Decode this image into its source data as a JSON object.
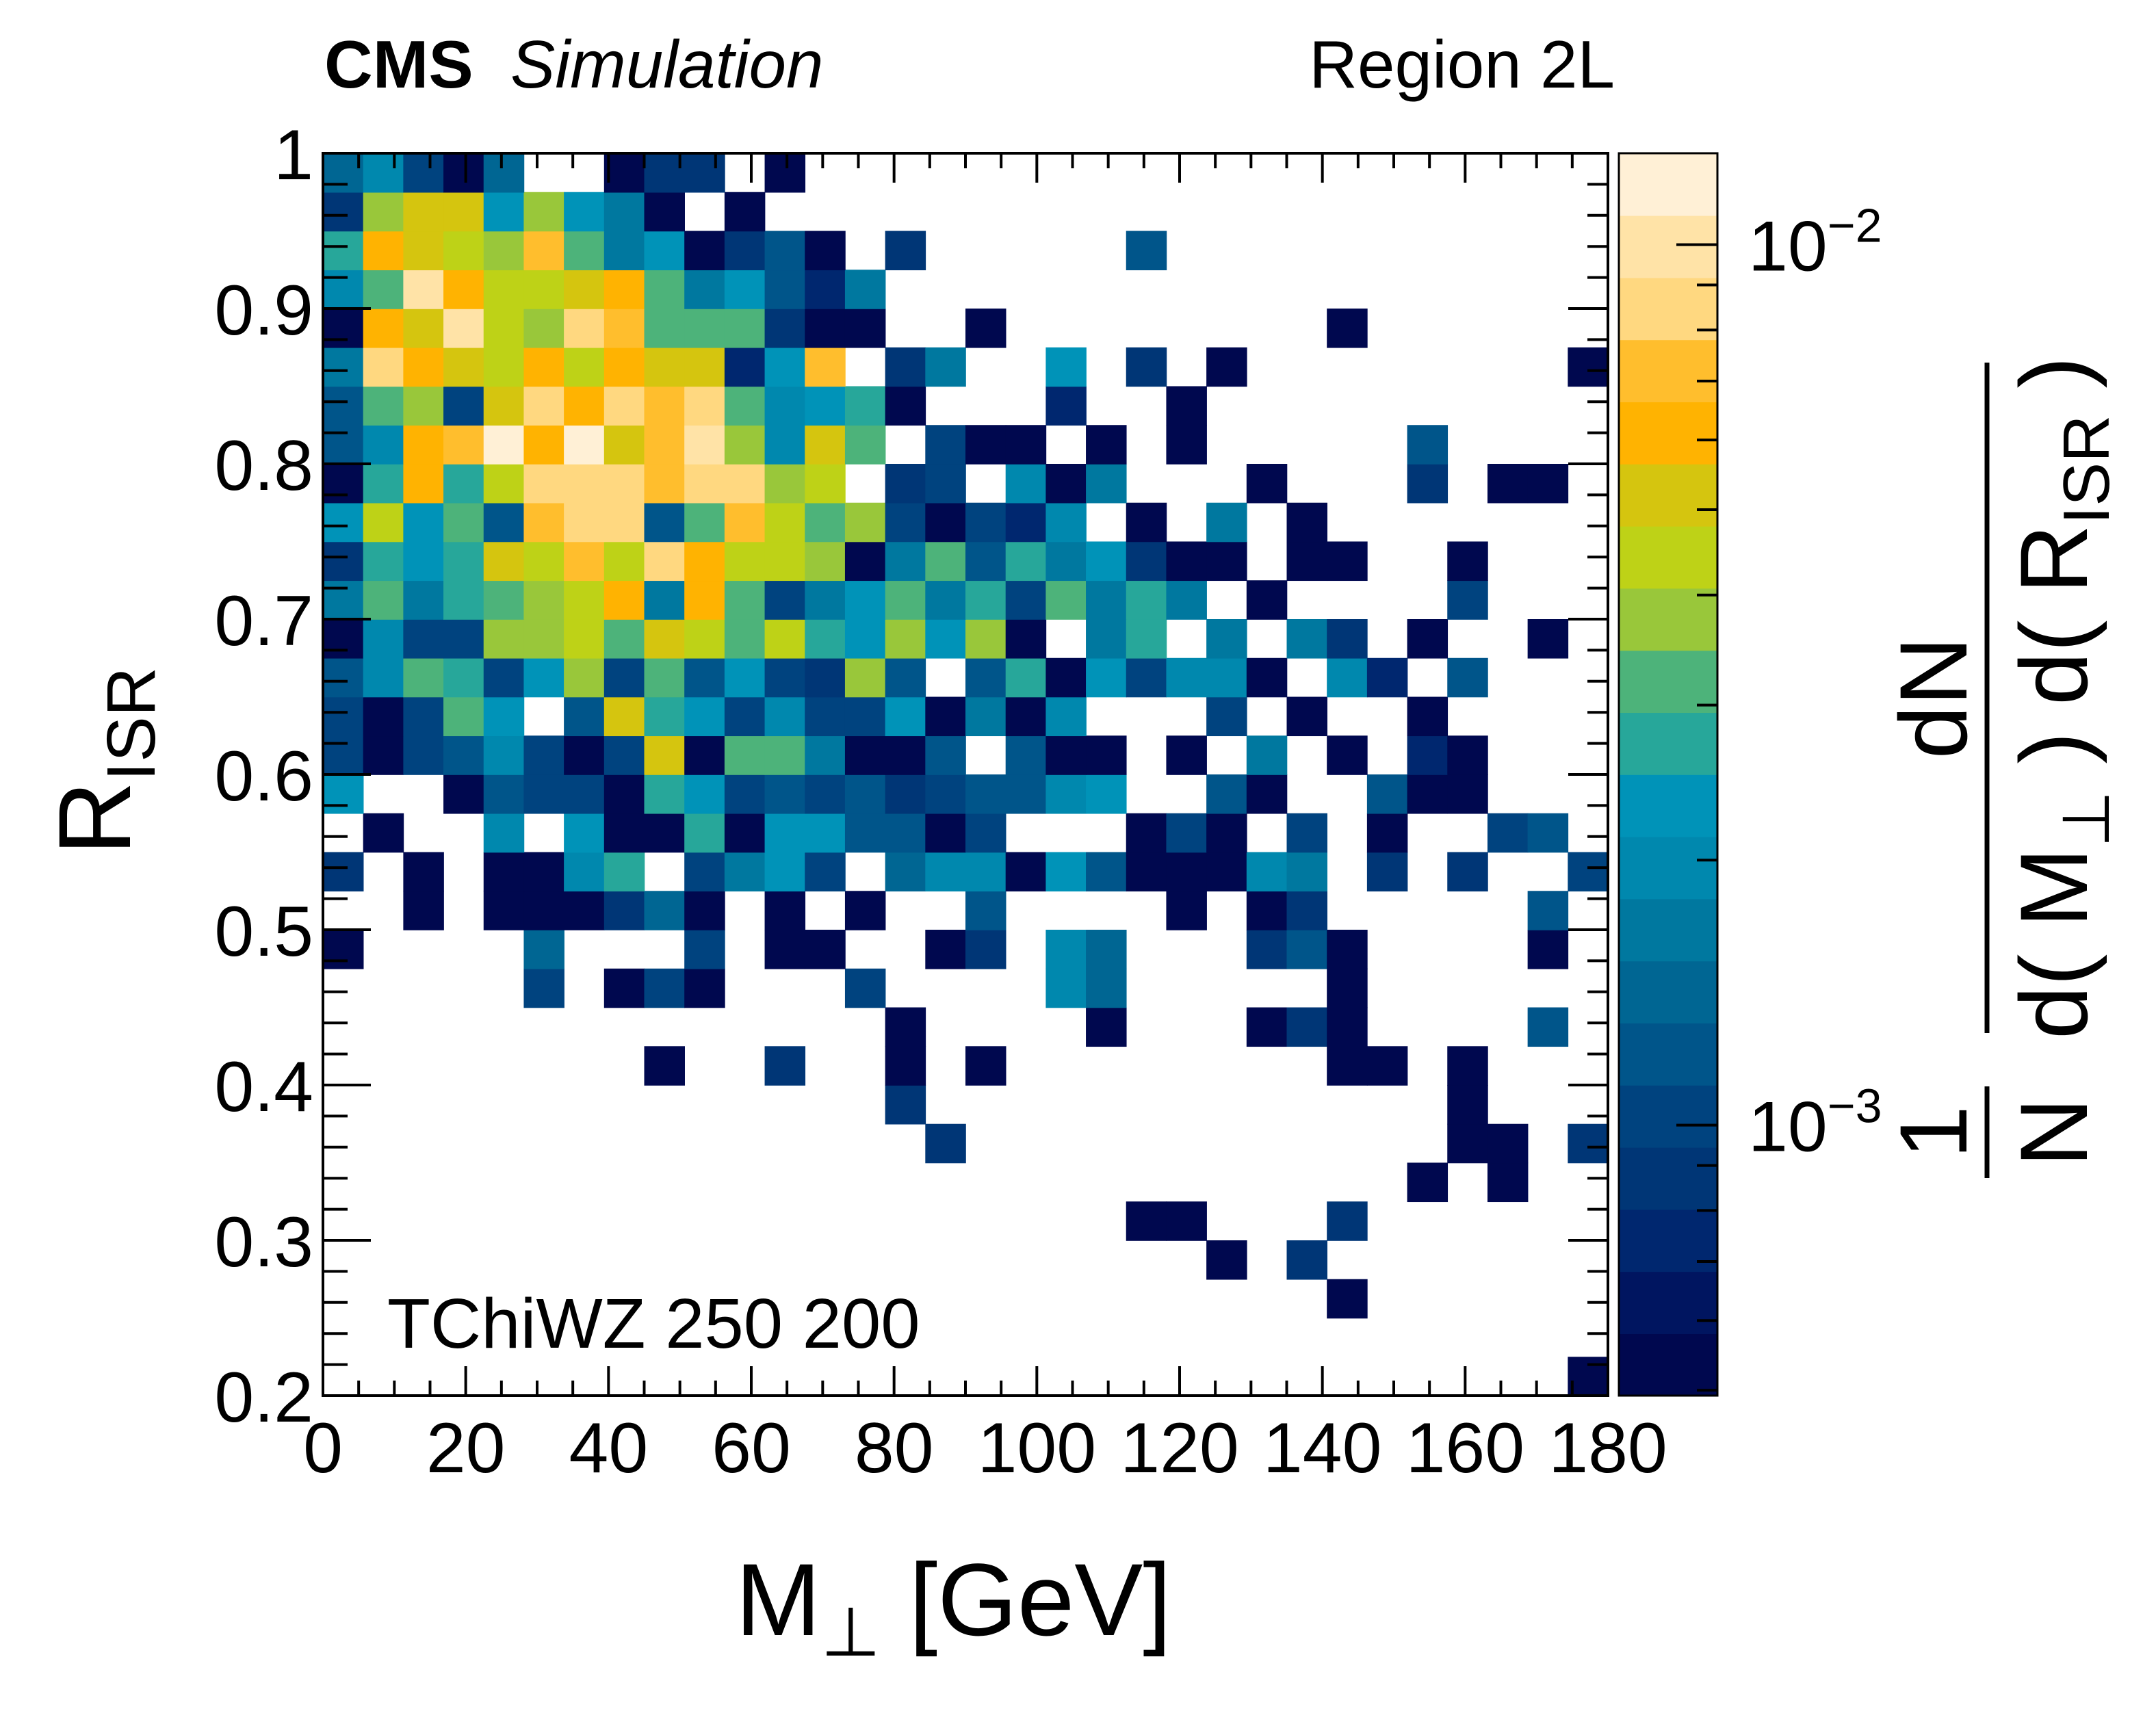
{
  "header": {
    "experiment": "CMS",
    "status": "Simulation",
    "region": "Region 2L"
  },
  "annotation": "TChiWZ 250 200",
  "chart_data": {
    "type": "heatmap",
    "xlabel": {
      "main": "M",
      "sub": "⊥",
      "unit": " [GeV]"
    },
    "ylabel": {
      "main": "R",
      "sub": "ISR"
    },
    "zlabel": {
      "one": "1",
      "N": "N",
      "numerator": "dN",
      "denominator_parts": [
        "d( M",
        "⊥",
        " ) d( R",
        "ISR",
        " )"
      ]
    },
    "x_bins": {
      "min": 0,
      "max": 180,
      "n": 32
    },
    "y_bins": {
      "min": 0.2,
      "max": 1.0,
      "n": 32
    },
    "xlim": [
      0,
      180
    ],
    "ylim": [
      0.2,
      1.0
    ],
    "zlim": [
      0.000493,
      0.0127
    ],
    "z_scale": "log",
    "grid": false,
    "x_ticks": [
      "0",
      "20",
      "40",
      "60",
      "80",
      "100",
      "120",
      "140",
      "160",
      "180"
    ],
    "y_ticks": [
      "0.2",
      "0.3",
      "0.4",
      "0.5",
      "0.6",
      "0.7",
      "0.8",
      "0.9",
      "1"
    ],
    "z_ticks": [
      {
        "value": 0.001,
        "base": "10",
        "exp": "−3"
      },
      {
        "value": 0.01,
        "base": "10",
        "exp": "−2"
      }
    ],
    "palette": [
      "#00084f",
      "#001560",
      "#00276f",
      "#003676",
      "#00437f",
      "#00558a",
      "#006693",
      "#00789f",
      "#0088ae",
      "#0093b8",
      "#27a79a",
      "#4db37a",
      "#99c73a",
      "#bed217",
      "#d5c50f",
      "#ffb301",
      "#ffbe2d",
      "#ffd880",
      "#ffe3a7",
      "#fff0d6"
    ],
    "z_rows_from_lowest_y": [
      [
        0,
        0,
        0,
        0,
        0,
        0,
        0,
        0,
        0,
        0,
        0,
        0,
        0,
        0,
        0,
        0,
        0,
        0,
        0,
        0,
        0,
        0,
        0,
        0,
        0,
        0,
        0,
        0,
        0,
        0,
        0,
        0.00054
      ],
      [
        0,
        0,
        0,
        0,
        0,
        0,
        0,
        0,
        0,
        0,
        0,
        0,
        0,
        0,
        0,
        0,
        0,
        0,
        0,
        0,
        0,
        0,
        0,
        0,
        0,
        0,
        0,
        0,
        0,
        0,
        0,
        0
      ],
      [
        0,
        0,
        0,
        0,
        0,
        0,
        0,
        0,
        0,
        0,
        0,
        0,
        0,
        0,
        0,
        0,
        0,
        0,
        0,
        0,
        0,
        0,
        0,
        0,
        0,
        0.00054,
        0,
        0,
        0,
        0,
        0,
        0
      ],
      [
        0,
        0,
        0,
        0,
        0,
        0,
        0,
        0,
        0,
        0,
        0,
        0,
        0,
        0,
        0,
        0,
        0,
        0,
        0,
        0,
        0,
        0,
        0.00054,
        0,
        0.00087,
        0,
        0,
        0,
        0,
        0,
        0,
        0
      ],
      [
        0,
        0,
        0,
        0,
        0,
        0,
        0,
        0,
        0,
        0,
        0,
        0,
        0,
        0,
        0,
        0,
        0,
        0,
        0,
        0,
        0.00054,
        0.00054,
        0,
        0,
        0,
        0.00087,
        0,
        0,
        0,
        0,
        0,
        0
      ],
      [
        0,
        0,
        0,
        0,
        0,
        0,
        0,
        0,
        0,
        0,
        0,
        0,
        0,
        0,
        0,
        0,
        0,
        0,
        0,
        0,
        0,
        0,
        0,
        0,
        0,
        0,
        0,
        0.00054,
        0,
        0.00054,
        0,
        0
      ],
      [
        0,
        0,
        0,
        0,
        0,
        0,
        0,
        0,
        0,
        0,
        0,
        0,
        0,
        0,
        0,
        0.00087,
        0,
        0,
        0,
        0,
        0,
        0,
        0,
        0,
        0,
        0,
        0,
        0,
        0.00054,
        0.00054,
        0,
        0.00087
      ],
      [
        0,
        0,
        0,
        0,
        0,
        0,
        0,
        0,
        0,
        0,
        0,
        0,
        0,
        0,
        0.00087,
        0,
        0,
        0,
        0,
        0,
        0,
        0,
        0,
        0,
        0,
        0,
        0,
        0,
        0.00054,
        0,
        0,
        0
      ],
      [
        0,
        0,
        0,
        0,
        0,
        0,
        0,
        0,
        0.00054,
        0,
        0,
        0.00087,
        0,
        0,
        0.00054,
        0,
        0.00054,
        0,
        0,
        0,
        0,
        0,
        0,
        0,
        0,
        0.00054,
        0.00054,
        0,
        0.00054,
        0,
        0,
        0
      ],
      [
        0,
        0,
        0,
        0,
        0,
        0,
        0,
        0,
        0,
        0,
        0,
        0,
        0,
        0,
        0.00054,
        0,
        0,
        0,
        0,
        0.00054,
        0,
        0,
        0,
        0.00054,
        0.00087,
        0.00054,
        0,
        0,
        0,
        0,
        0.0012,
        0
      ],
      [
        0,
        0,
        0,
        0,
        0,
        0.00103,
        0,
        0.00054,
        0.00103,
        0.00054,
        0,
        0,
        0,
        0.00103,
        0,
        0,
        0,
        0,
        0.002,
        0.0014,
        0,
        0,
        0,
        0,
        0,
        0.00054,
        0,
        0,
        0,
        0,
        0,
        0
      ],
      [
        0.00054,
        0,
        0,
        0,
        0,
        0.0014,
        0,
        0,
        0,
        0.00103,
        0,
        0.00054,
        0.00054,
        0,
        0,
        0.00054,
        0.00087,
        0,
        0.002,
        0.0014,
        0,
        0,
        0,
        0.00087,
        0.0012,
        0.00054,
        0,
        0,
        0,
        0,
        0.00054,
        0
      ],
      [
        0,
        0,
        0.00054,
        0,
        0.00054,
        0.00054,
        0.00054,
        0.00087,
        0.0014,
        0.00054,
        0,
        0.00054,
        0,
        0.00054,
        0,
        0,
        0.0012,
        0,
        0,
        0,
        0,
        0.00054,
        0,
        0.00054,
        0.00087,
        0,
        0,
        0,
        0,
        0,
        0.0012,
        0
      ],
      [
        0.00087,
        0,
        0.00054,
        0,
        0.00054,
        0.00054,
        0.002,
        0.0027,
        0,
        0.00103,
        0.0017,
        0.0023,
        0.00103,
        0,
        0.0014,
        0.002,
        0.002,
        0.00054,
        0.0023,
        0.0012,
        0.00054,
        0.00054,
        0.00054,
        0.002,
        0.0017,
        0,
        0.00087,
        0,
        0.00087,
        0,
        0,
        0.00103
      ],
      [
        0,
        0.00054,
        0,
        0,
        0.002,
        0,
        0.0023,
        0.00054,
        0.00054,
        0.0027,
        0.00054,
        0.0023,
        0.0023,
        0.0012,
        0.0012,
        0.00054,
        0.00103,
        0,
        0,
        0,
        0.00054,
        0.00103,
        0.00054,
        0,
        0.00103,
        0,
        0.00054,
        0,
        0,
        0.00103,
        0.0012,
        0
      ],
      [
        0.0023,
        0,
        0,
        0.00054,
        0.0012,
        0.00103,
        0.00103,
        0.00054,
        0.0027,
        0.0023,
        0.00103,
        0.0012,
        0.00103,
        0.0012,
        0.00087,
        0.00103,
        0.0012,
        0.0012,
        0.002,
        0.0023,
        0,
        0,
        0.0012,
        0.00054,
        0,
        0,
        0.0012,
        0.00054,
        0.00054,
        0,
        0,
        0
      ],
      [
        0.00103,
        0.00054,
        0.00103,
        0.0012,
        0.002,
        0.00103,
        0.00054,
        0.00103,
        0.0052,
        0.00054,
        0.0032,
        0.0032,
        0.0017,
        0.00054,
        0.00054,
        0.0012,
        0,
        0.0012,
        0.00054,
        0.00054,
        0,
        0.00054,
        0,
        0.0017,
        0,
        0.00054,
        0,
        0.00074,
        0.00054,
        0,
        0,
        0
      ],
      [
        0.00103,
        0.00054,
        0.00103,
        0.0032,
        0.0023,
        0,
        0.0012,
        0.0052,
        0.0027,
        0.0023,
        0.00103,
        0.002,
        0.00103,
        0.00103,
        0.0023,
        0.00054,
        0.0017,
        0.00054,
        0.002,
        0,
        0,
        0,
        0.00103,
        0,
        0.00054,
        0,
        0,
        0.00054,
        0,
        0,
        0,
        0
      ],
      [
        0.0012,
        0.002,
        0.0032,
        0.0027,
        0.00103,
        0.0023,
        0.0038,
        0.00103,
        0.0032,
        0.0012,
        0.0023,
        0.00103,
        0.00087,
        0.0038,
        0.0012,
        0,
        0.0012,
        0.0027,
        0.00054,
        0.0023,
        0.00103,
        0.002,
        0.002,
        0.00054,
        0,
        0.002,
        0.00074,
        0,
        0.0012,
        0,
        0,
        0
      ],
      [
        0.00054,
        0.002,
        0.00103,
        0.00103,
        0.0038,
        0.0038,
        0.0044,
        0.0032,
        0.0052,
        0.0044,
        0.0032,
        0.0044,
        0.0027,
        0.0023,
        0.0038,
        0.0023,
        0.0038,
        0.00054,
        0,
        0.0017,
        0.0027,
        0,
        0.0017,
        0,
        0.0017,
        0.00087,
        0,
        0.00054,
        0,
        0,
        0.00054,
        0
      ],
      [
        0.0017,
        0.0032,
        0.0017,
        0.0027,
        0.0032,
        0.0038,
        0.0044,
        0.0062,
        0.0017,
        0.0062,
        0.0032,
        0.00103,
        0.0017,
        0.0023,
        0.0032,
        0.0017,
        0.0027,
        0.00103,
        0.0032,
        0.0017,
        0.0027,
        0.0017,
        0,
        0.00054,
        0,
        0,
        0,
        0,
        0.00103,
        0,
        0,
        0
      ],
      [
        0.00087,
        0.0027,
        0.0023,
        0.0027,
        0.0052,
        0.0044,
        0.0072,
        0.0044,
        0.0085,
        0.0062,
        0.0044,
        0.0044,
        0.0038,
        0.00054,
        0.0017,
        0.0032,
        0.0012,
        0.0027,
        0.0017,
        0.0023,
        0.00087,
        0.00054,
        0.00054,
        0,
        0.00054,
        0.00054,
        0,
        0,
        0.00054,
        0,
        0,
        0
      ],
      [
        0.0023,
        0.0044,
        0.0023,
        0.0032,
        0.0012,
        0.0072,
        0.0085,
        0.0085,
        0.0012,
        0.0032,
        0.0072,
        0.0044,
        0.0032,
        0.0038,
        0.00103,
        0.00054,
        0.00103,
        0.00074,
        0.002,
        0,
        0.00054,
        0,
        0.0017,
        0,
        0.00054,
        0,
        0,
        0,
        0,
        0,
        0,
        0
      ],
      [
        0.00054,
        0.0027,
        0.0062,
        0.0027,
        0.0044,
        0.0085,
        0.0085,
        0.0085,
        0.0072,
        0.0085,
        0.0085,
        0.0038,
        0.0044,
        0,
        0.00087,
        0.00103,
        0,
        0.002,
        0.00054,
        0.0017,
        0,
        0,
        0,
        0.00054,
        0,
        0,
        0,
        0.00087,
        0,
        0.00054,
        0.00054,
        0
      ],
      [
        0.0012,
        0.002,
        0.0062,
        0.0072,
        0.0117,
        0.0062,
        0.0117,
        0.0052,
        0.0072,
        0.01,
        0.0038,
        0.002,
        0.0052,
        0.0032,
        0,
        0.00103,
        0.00054,
        0.00054,
        0,
        0.00054,
        0,
        0.00054,
        0,
        0,
        0,
        0,
        0,
        0.0012,
        0,
        0,
        0,
        0
      ],
      [
        0.0012,
        0.0032,
        0.0038,
        0.00103,
        0.0052,
        0.0085,
        0.0062,
        0.0085,
        0.0072,
        0.0085,
        0.0032,
        0.002,
        0.0023,
        0.0027,
        0.00054,
        0,
        0,
        0,
        0.00074,
        0,
        0,
        0.00054,
        0,
        0,
        0,
        0,
        0,
        0,
        0,
        0,
        0,
        0
      ],
      [
        0.0017,
        0.0085,
        0.0062,
        0.0052,
        0.0044,
        0.0062,
        0.0044,
        0.0062,
        0.0052,
        0.0052,
        0.00074,
        0.0023,
        0.0072,
        0,
        0.00087,
        0.0017,
        0,
        0,
        0.0023,
        0,
        0.00087,
        0,
        0.00054,
        0,
        0,
        0,
        0,
        0,
        0,
        0,
        0,
        0.00054
      ],
      [
        0.00054,
        0.0062,
        0.0052,
        0.01,
        0.0044,
        0.0038,
        0.0085,
        0.0072,
        0.0032,
        0.0032,
        0.0032,
        0.00087,
        0.00054,
        0.00054,
        0,
        0,
        0.00054,
        0,
        0,
        0,
        0,
        0,
        0,
        0,
        0,
        0.00054,
        0,
        0,
        0,
        0,
        0,
        0
      ],
      [
        0.002,
        0.0032,
        0.01,
        0.0062,
        0.0044,
        0.0044,
        0.0052,
        0.0062,
        0.0032,
        0.0017,
        0.0023,
        0.0012,
        0.00074,
        0.0017,
        0,
        0,
        0,
        0,
        0,
        0,
        0,
        0,
        0,
        0,
        0,
        0,
        0,
        0,
        0,
        0,
        0,
        0
      ],
      [
        0.0027,
        0.0062,
        0.0052,
        0.0044,
        0.0038,
        0.0072,
        0.0032,
        0.0017,
        0.0023,
        0.00054,
        0.00087,
        0.0012,
        0.00054,
        0,
        0.00087,
        0,
        0,
        0,
        0,
        0,
        0.0012,
        0,
        0,
        0,
        0,
        0,
        0,
        0,
        0,
        0,
        0,
        0
      ],
      [
        0.00087,
        0.0038,
        0.0052,
        0.0052,
        0.0023,
        0.0038,
        0.0023,
        0.0017,
        0.00054,
        0,
        0.00054,
        0,
        0,
        0,
        0,
        0,
        0,
        0,
        0,
        0,
        0,
        0,
        0,
        0,
        0,
        0,
        0,
        0,
        0,
        0,
        0,
        0
      ],
      [
        0.0014,
        0.002,
        0.00103,
        0.00054,
        0.0014,
        0,
        0,
        0.00054,
        0.00087,
        0.00087,
        0,
        0.00054,
        0,
        0,
        0,
        0,
        0,
        0,
        0,
        0,
        0,
        0,
        0,
        0,
        0,
        0,
        0,
        0,
        0,
        0,
        0,
        0
      ]
    ]
  }
}
